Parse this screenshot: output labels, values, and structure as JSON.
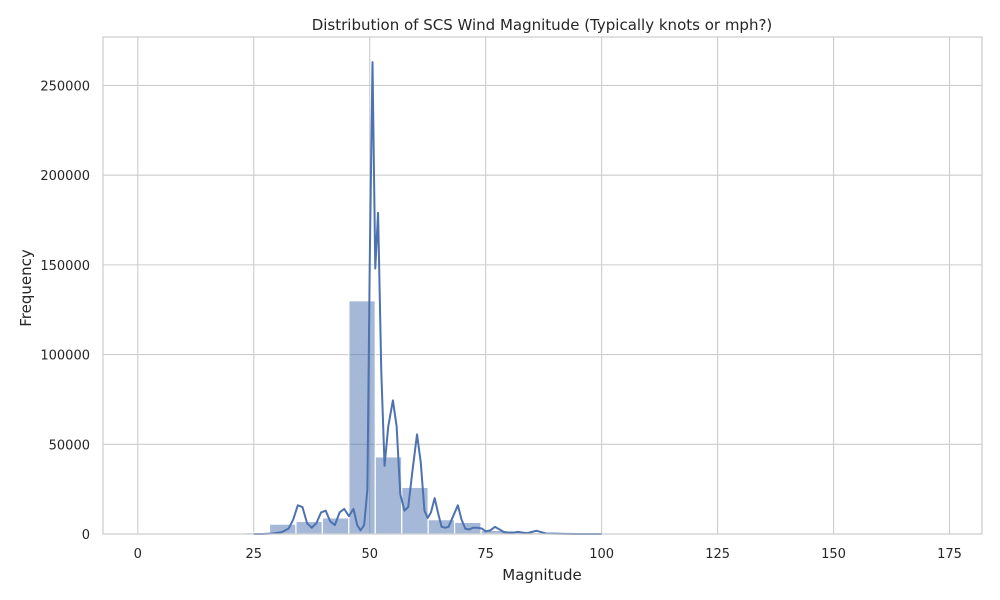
{
  "chart_data": {
    "type": "bar",
    "title": "Distribution of SCS Wind Magnitude (Typically knots or mph?)",
    "xlabel": "Magnitude",
    "ylabel": "Frequency",
    "xlim": [
      -7.5,
      182
    ],
    "ylim": [
      0,
      277000
    ],
    "xticks": [
      0,
      25,
      50,
      75,
      100,
      125,
      150,
      175
    ],
    "yticks": [
      0,
      50000,
      100000,
      150000,
      200000,
      250000
    ],
    "grid": true,
    "colors": {
      "bar": "#4c72b0",
      "line": "#4c72b0",
      "grid": "#cccccc"
    },
    "histogram": {
      "bin_edges": [
        0,
        5.7,
        11.4,
        17.1,
        22.8,
        28.4,
        34.1,
        39.8,
        45.5,
        51.2,
        56.9,
        62.6,
        68.3,
        74.0,
        79.7,
        85.4,
        91.0,
        96.7,
        102.4,
        108.1,
        113.8,
        119.5,
        125.2,
        130.9,
        136.6,
        142.3,
        148.0,
        153.6,
        159.3,
        165.0,
        170.7
      ],
      "values": [
        0,
        0,
        0,
        0,
        800,
        5500,
        7000,
        9000,
        130000,
        43000,
        26000,
        8000,
        6500,
        2000,
        1200,
        800,
        300,
        100,
        0,
        0,
        0,
        0,
        0,
        0,
        0,
        0,
        0,
        0,
        0,
        0
      ]
    },
    "kde": {
      "x": [
        25,
        27,
        29,
        31,
        32.5,
        33.5,
        34.5,
        35.5,
        36.5,
        37.5,
        38.5,
        39.5,
        40.5,
        41.5,
        42.5,
        43.5,
        44.5,
        45.5,
        46.5,
        47.3,
        48,
        48.8,
        49.5,
        50,
        50.6,
        51.2,
        51.8,
        52.5,
        53.2,
        54,
        55,
        55.8,
        56.6,
        57.5,
        58.3,
        59.2,
        60.2,
        61,
        61.8,
        62.5,
        63.2,
        64,
        64.8,
        65.5,
        66.3,
        67,
        68,
        69,
        69.8,
        70.6,
        71.4,
        72.3,
        73.3,
        74.2,
        75,
        76,
        77,
        78,
        79,
        80,
        81,
        82,
        83,
        84,
        85,
        86,
        87,
        88,
        90,
        92,
        95,
        100
      ],
      "y": [
        0,
        0,
        300,
        1000,
        3000,
        8000,
        16000,
        15000,
        6000,
        3500,
        6000,
        12000,
        13000,
        7000,
        5000,
        12000,
        14000,
        10000,
        14000,
        5000,
        2000,
        5000,
        25000,
        150000,
        263000,
        148000,
        179000,
        90000,
        38000,
        60000,
        74500,
        60000,
        22000,
        13000,
        15000,
        35000,
        55500,
        40000,
        13000,
        9000,
        12000,
        20000,
        11000,
        4000,
        3500,
        4000,
        10000,
        16000,
        8000,
        3000,
        2500,
        3500,
        3500,
        3000,
        1500,
        2000,
        4000,
        2500,
        1000,
        800,
        800,
        1200,
        800,
        500,
        1200,
        1800,
        1000,
        300,
        200,
        100,
        0,
        0
      ]
    }
  }
}
